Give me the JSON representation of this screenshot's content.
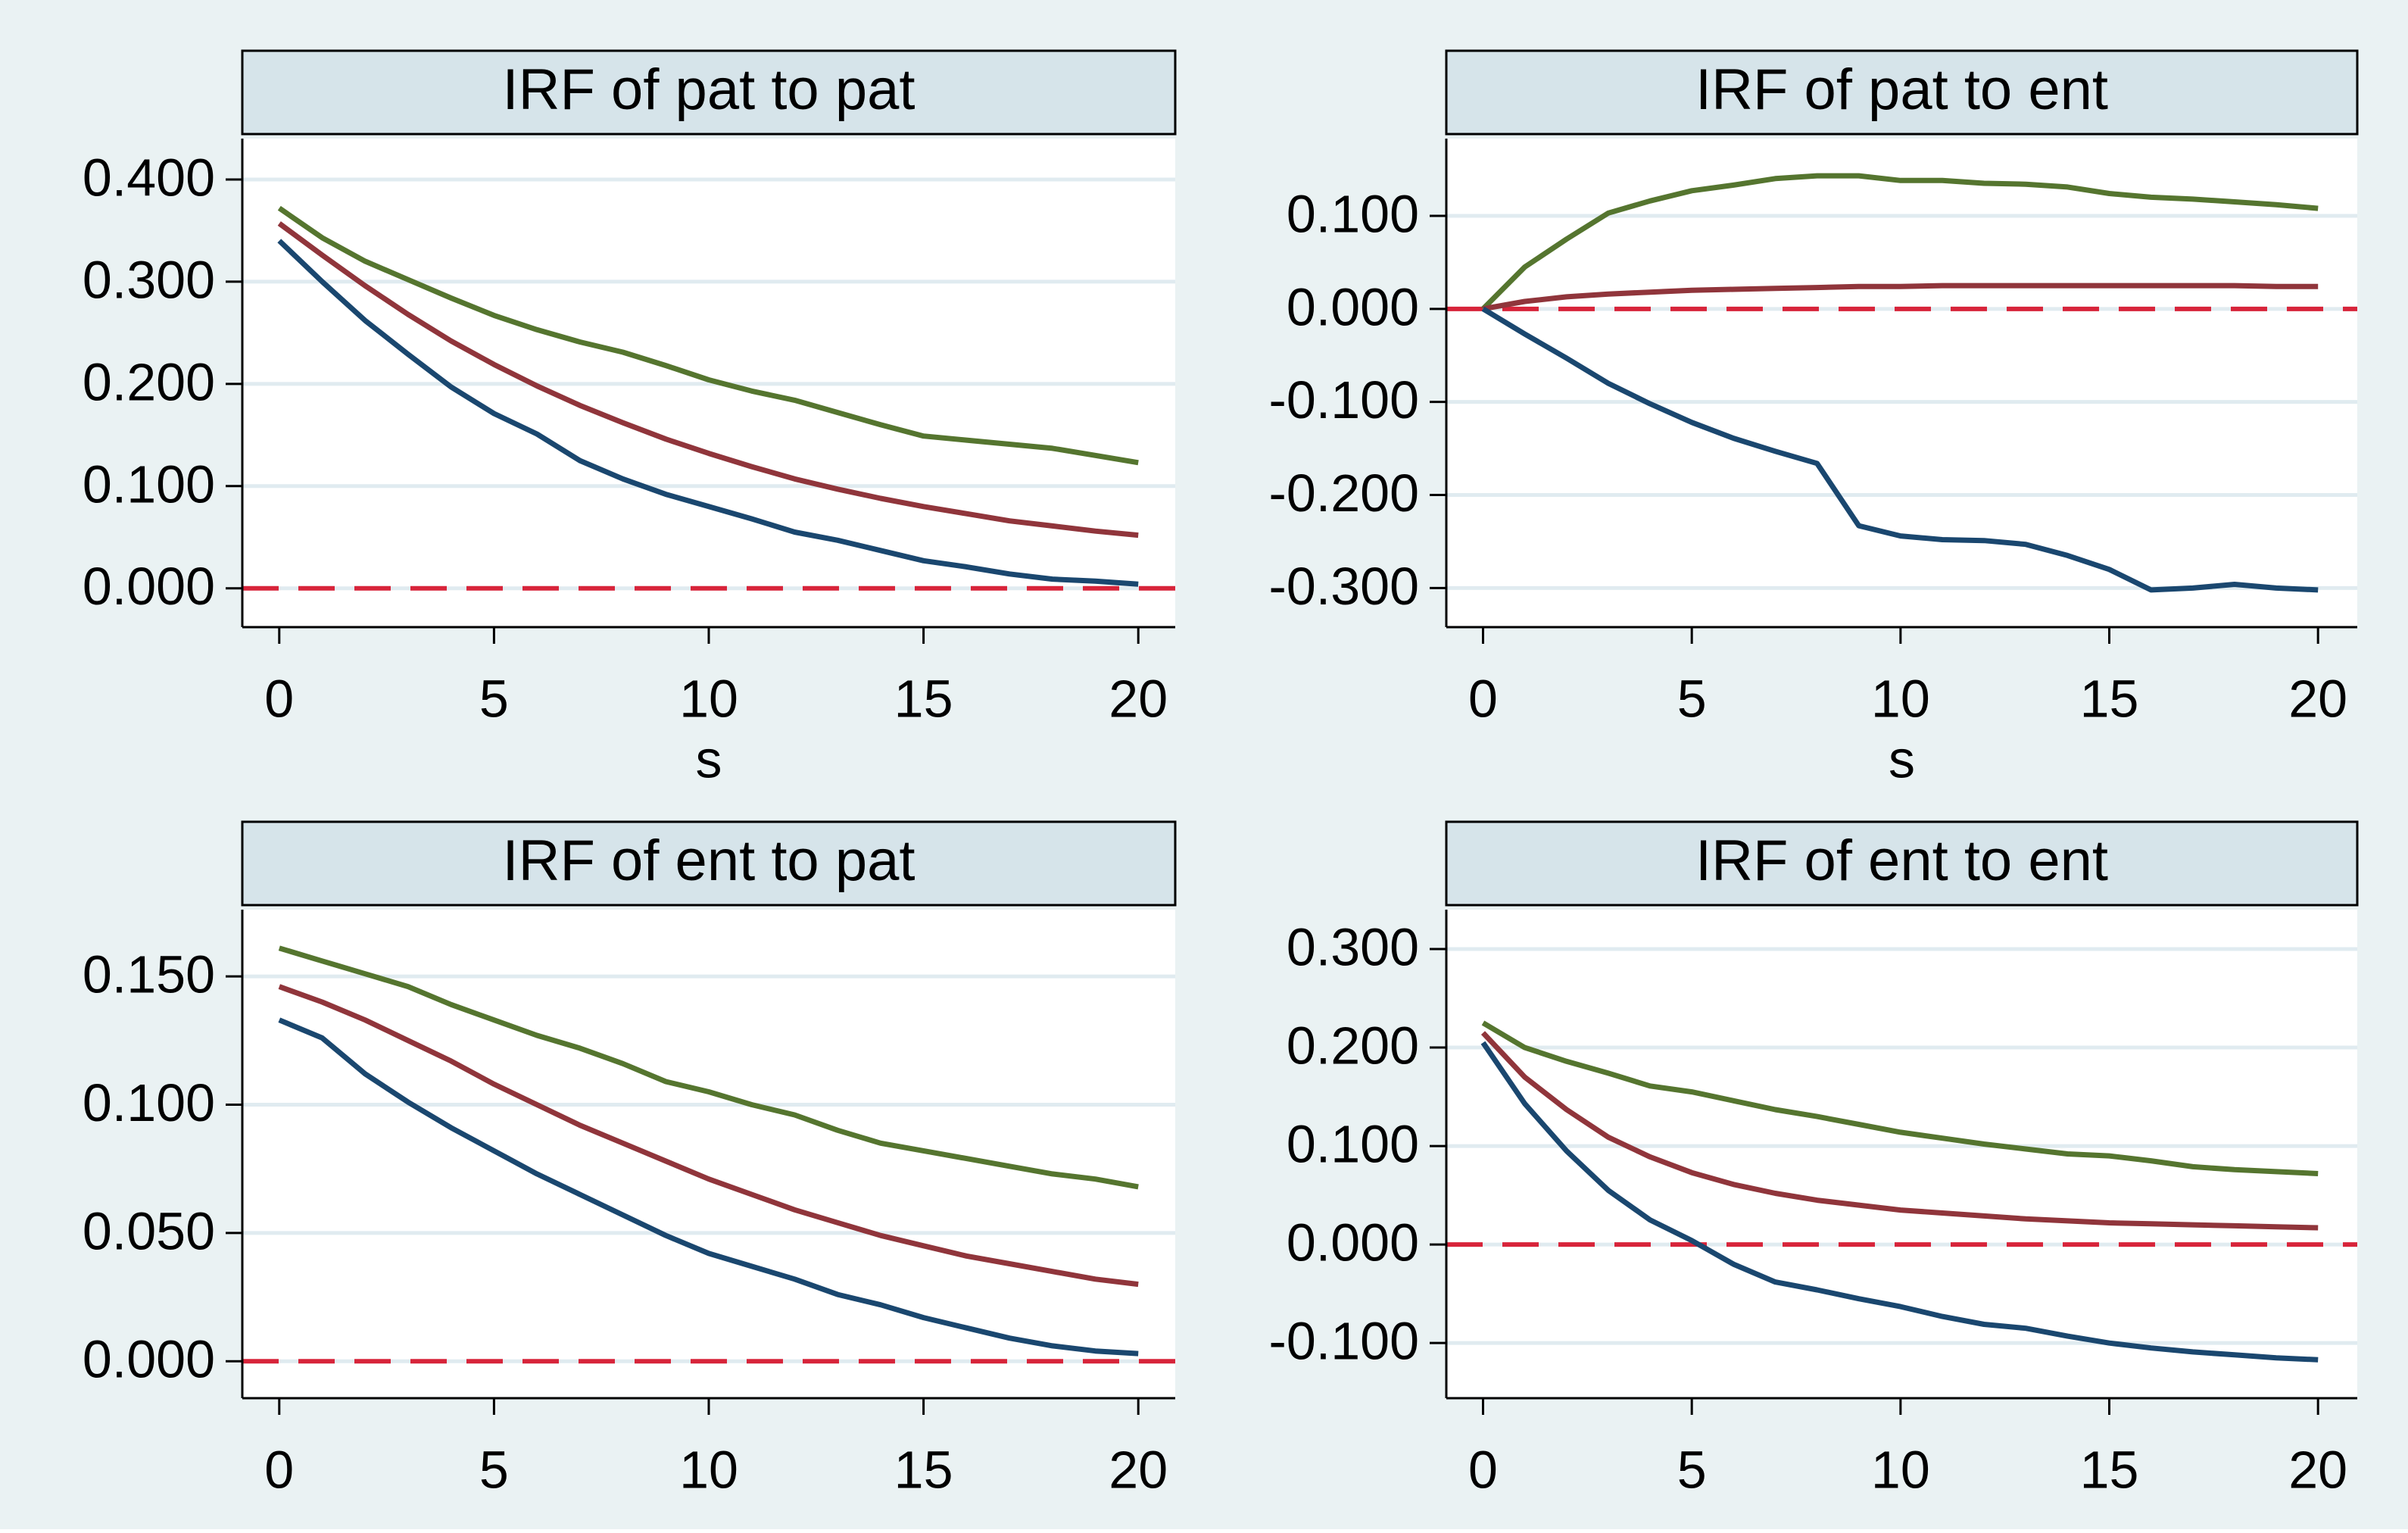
{
  "chart_data": [
    {
      "type": "line",
      "title": "IRF of pat to pat",
      "xlabel": "s",
      "x": [
        0,
        1,
        2,
        3,
        4,
        5,
        6,
        7,
        8,
        9,
        10,
        11,
        12,
        13,
        14,
        15,
        16,
        17,
        18,
        19,
        20
      ],
      "series": [
        {
          "color": "#55752f",
          "values": [
            0.372,
            0.343,
            0.32,
            0.302,
            0.284,
            0.267,
            0.253,
            0.241,
            0.231,
            0.218,
            0.204,
            0.193,
            0.184,
            0.172,
            0.16,
            0.149,
            0.145,
            0.141,
            0.137,
            0.13,
            0.123
          ]
        },
        {
          "color": "#90353b",
          "values": [
            0.357,
            0.326,
            0.296,
            0.268,
            0.242,
            0.219,
            0.198,
            0.179,
            0.162,
            0.146,
            0.132,
            0.119,
            0.107,
            0.097,
            0.088,
            0.08,
            0.073,
            0.066,
            0.061,
            0.056,
            0.052
          ]
        },
        {
          "color": "#1a476f",
          "values": [
            0.34,
            0.3,
            0.262,
            0.229,
            0.197,
            0.171,
            0.151,
            0.125,
            0.107,
            0.092,
            0.08,
            0.068,
            0.055,
            0.047,
            0.037,
            0.027,
            0.021,
            0.014,
            0.009,
            0.007,
            0.004
          ]
        }
      ],
      "xlim": [
        -0.86,
        20.86
      ],
      "ylim": [
        -0.038,
        0.44
      ],
      "xticks": [
        0,
        5,
        10,
        15,
        20
      ],
      "yticks": [
        {
          "value": 0,
          "label": "0.000"
        },
        {
          "value": 0.1,
          "label": "0.100"
        },
        {
          "value": 0.2,
          "label": "0.200"
        },
        {
          "value": 0.3,
          "label": "0.300"
        },
        {
          "value": 0.4,
          "label": "0.400"
        }
      ],
      "grid": true,
      "reference_line": {
        "value": 0,
        "color": "#d7243a"
      }
    },
    {
      "type": "line",
      "title": "IRF of pat to ent",
      "xlabel": "s",
      "x": [
        0,
        1,
        2,
        3,
        4,
        5,
        6,
        7,
        8,
        9,
        10,
        11,
        12,
        13,
        14,
        15,
        16,
        17,
        18,
        19,
        20
      ],
      "series": [
        {
          "color": "#55752f",
          "values": [
            0,
            0.045,
            0.075,
            0.103,
            0.116,
            0.127,
            0.133,
            0.14,
            0.143,
            0.143,
            0.138,
            0.138,
            0.135,
            0.134,
            0.131,
            0.124,
            0.12,
            0.118,
            0.115,
            0.112,
            0.108
          ]
        },
        {
          "color": "#90353b",
          "values": [
            0,
            0.008,
            0.013,
            0.016,
            0.018,
            0.02,
            0.021,
            0.022,
            0.023,
            0.024,
            0.024,
            0.025,
            0.025,
            0.025,
            0.025,
            0.025,
            0.025,
            0.025,
            0.025,
            0.024,
            0.024
          ]
        },
        {
          "color": "#1a476f",
          "values": [
            0,
            -0.027,
            -0.053,
            -0.08,
            -0.102,
            -0.122,
            -0.139,
            -0.153,
            -0.166,
            -0.233,
            -0.244,
            -0.248,
            -0.249,
            -0.253,
            -0.265,
            -0.28,
            -0.302,
            -0.3,
            -0.296,
            -0.3,
            -0.302
          ]
        }
      ],
      "xlim": [
        -0.88,
        20.94
      ],
      "ylim": [
        -0.342,
        0.183
      ],
      "xticks": [
        0,
        5,
        10,
        15,
        20
      ],
      "yticks": [
        {
          "value": -0.3,
          "label": "-0.300"
        },
        {
          "value": -0.2,
          "label": "-0.200"
        },
        {
          "value": -0.1,
          "label": "-0.100"
        },
        {
          "value": 0,
          "label": "0.000"
        },
        {
          "value": 0.1,
          "label": "0.100"
        }
      ],
      "grid": true,
      "reference_line": {
        "value": 0,
        "color": "#d7243a"
      }
    },
    {
      "type": "line",
      "title": "IRF of ent to pat",
      "x": [
        0,
        1,
        2,
        3,
        4,
        5,
        6,
        7,
        8,
        9,
        10,
        11,
        12,
        13,
        14,
        15,
        16,
        17,
        18,
        19,
        20
      ],
      "series": [
        {
          "color": "#55752f",
          "values": [
            0.161,
            0.156,
            0.151,
            0.146,
            0.139,
            0.133,
            0.127,
            0.122,
            0.116,
            0.109,
            0.105,
            0.1,
            0.096,
            0.09,
            0.085,
            0.082,
            0.079,
            0.076,
            0.073,
            0.071,
            0.068
          ]
        },
        {
          "color": "#90353b",
          "values": [
            0.146,
            0.14,
            0.133,
            0.125,
            0.117,
            0.108,
            0.1,
            0.092,
            0.085,
            0.078,
            0.071,
            0.065,
            0.059,
            0.054,
            0.049,
            0.045,
            0.041,
            0.038,
            0.035,
            0.032,
            0.03
          ]
        },
        {
          "color": "#1a476f",
          "values": [
            0.133,
            0.126,
            0.112,
            0.101,
            0.091,
            0.082,
            0.073,
            0.065,
            0.057,
            0.049,
            0.042,
            0.037,
            0.032,
            0.026,
            0.022,
            0.017,
            0.013,
            0.009,
            0.006,
            0.004,
            0.003
          ]
        }
      ],
      "xlim": [
        -0.86,
        20.86
      ],
      "ylim": [
        -0.0144,
        0.176
      ],
      "xticks": [
        0,
        5,
        10,
        15,
        20
      ],
      "yticks": [
        {
          "value": 0,
          "label": "0.000"
        },
        {
          "value": 0.05,
          "label": "0.050"
        },
        {
          "value": 0.1,
          "label": "0.100"
        },
        {
          "value": 0.15,
          "label": "0.150"
        }
      ],
      "grid": true,
      "reference_line": {
        "value": 0,
        "color": "#d7243a"
      }
    },
    {
      "type": "line",
      "title": "IRF of ent to ent",
      "x": [
        0,
        1,
        2,
        3,
        4,
        5,
        6,
        7,
        8,
        9,
        10,
        11,
        12,
        13,
        14,
        15,
        16,
        17,
        18,
        19,
        20
      ],
      "series": [
        {
          "color": "#55752f",
          "values": [
            0.225,
            0.2,
            0.186,
            0.174,
            0.161,
            0.155,
            0.146,
            0.137,
            0.13,
            0.122,
            0.114,
            0.108,
            0.102,
            0.097,
            0.092,
            0.09,
            0.085,
            0.079,
            0.076,
            0.074,
            0.072
          ]
        },
        {
          "color": "#90353b",
          "values": [
            0.215,
            0.17,
            0.137,
            0.109,
            0.089,
            0.073,
            0.061,
            0.052,
            0.045,
            0.04,
            0.035,
            0.032,
            0.029,
            0.026,
            0.024,
            0.022,
            0.021,
            0.02,
            0.019,
            0.018,
            0.017
          ]
        },
        {
          "color": "#1a476f",
          "values": [
            0.205,
            0.143,
            0.095,
            0.055,
            0.025,
            0.004,
            -0.02,
            -0.038,
            -0.046,
            -0.055,
            -0.063,
            -0.073,
            -0.081,
            -0.085,
            -0.093,
            -0.1,
            -0.105,
            -0.109,
            -0.112,
            -0.115,
            -0.117
          ]
        }
      ],
      "xlim": [
        -0.88,
        20.94
      ],
      "ylim": [
        -0.156,
        0.34
      ],
      "xticks": [
        0,
        5,
        10,
        15,
        20
      ],
      "yticks": [
        {
          "value": -0.1,
          "label": "-0.100"
        },
        {
          "value": 0,
          "label": "0.000"
        },
        {
          "value": 0.1,
          "label": "0.100"
        },
        {
          "value": 0.2,
          "label": "0.200"
        },
        {
          "value": 0.3,
          "label": "0.300"
        }
      ],
      "grid": true,
      "reference_line": {
        "value": 0,
        "color": "#d7243a"
      }
    }
  ]
}
